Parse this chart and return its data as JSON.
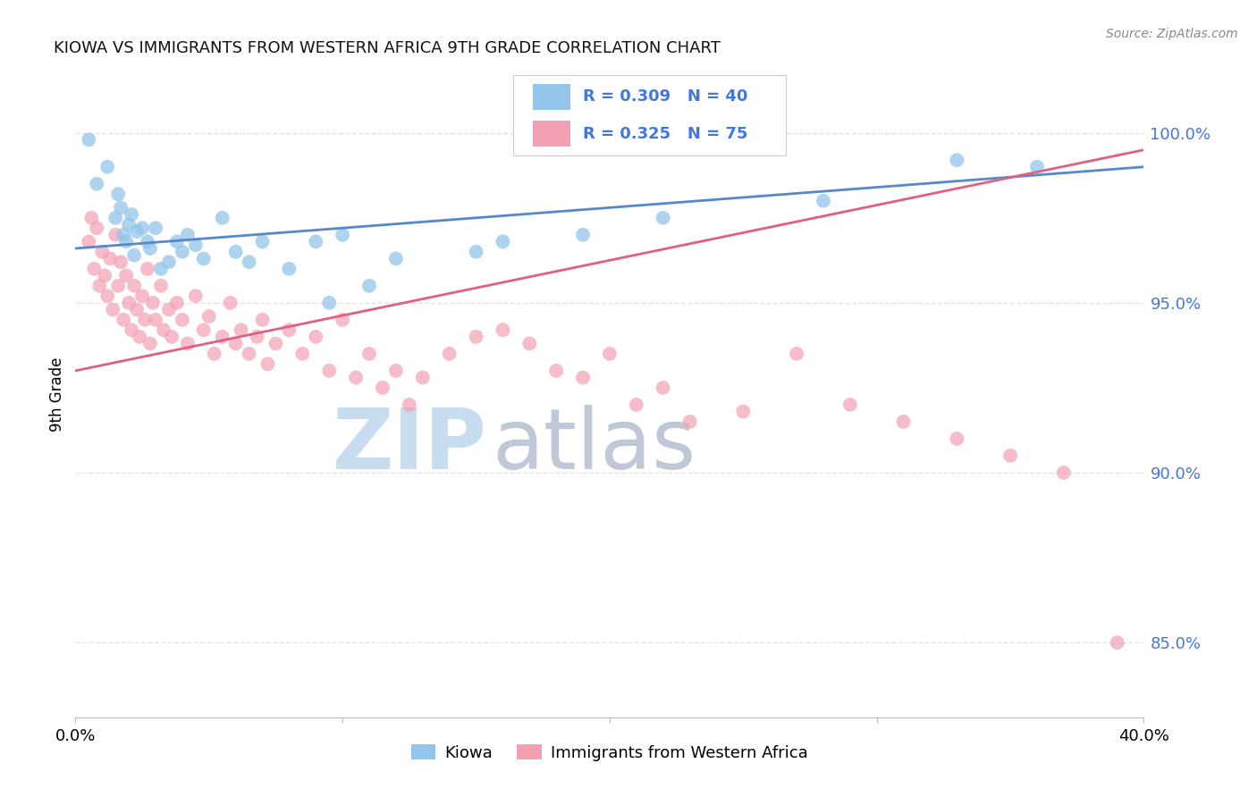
{
  "title": "KIOWA VS IMMIGRANTS FROM WESTERN AFRICA 9TH GRADE CORRELATION CHART",
  "source": "Source: ZipAtlas.com",
  "ylabel": "9th Grade",
  "right_yticks": [
    "100.0%",
    "95.0%",
    "90.0%",
    "85.0%"
  ],
  "right_ytick_vals": [
    1.0,
    0.95,
    0.9,
    0.85
  ],
  "xlim": [
    0.0,
    0.4
  ],
  "ylim": [
    0.828,
    1.018
  ],
  "legend_blue_r": "0.309",
  "legend_blue_n": "40",
  "legend_pink_r": "0.325",
  "legend_pink_n": "75",
  "blue_color": "#92C5EA",
  "pink_color": "#F4A0B4",
  "line_blue_color": "#5588CC",
  "line_pink_color": "#E06080",
  "legend_text_color": "#4477DD",
  "axis_label_color": "#4477DD",
  "watermark_zip_color": "#C8DCF0",
  "watermark_atlas_color": "#C0C8D8",
  "blue_scatter_x": [
    0.005,
    0.008,
    0.012,
    0.015,
    0.016,
    0.017,
    0.018,
    0.019,
    0.02,
    0.021,
    0.022,
    0.023,
    0.025,
    0.027,
    0.028,
    0.03,
    0.032,
    0.035,
    0.038,
    0.04,
    0.042,
    0.045,
    0.048,
    0.055,
    0.06,
    0.065,
    0.07,
    0.08,
    0.09,
    0.095,
    0.1,
    0.11,
    0.12,
    0.15,
    0.16,
    0.19,
    0.22,
    0.28,
    0.33,
    0.36
  ],
  "blue_scatter_y": [
    0.998,
    0.985,
    0.99,
    0.975,
    0.982,
    0.978,
    0.97,
    0.968,
    0.973,
    0.976,
    0.964,
    0.971,
    0.972,
    0.968,
    0.966,
    0.972,
    0.96,
    0.962,
    0.968,
    0.965,
    0.97,
    0.967,
    0.963,
    0.975,
    0.965,
    0.962,
    0.968,
    0.96,
    0.968,
    0.95,
    0.97,
    0.955,
    0.963,
    0.965,
    0.968,
    0.97,
    0.975,
    0.98,
    0.992,
    0.99
  ],
  "pink_scatter_x": [
    0.005,
    0.006,
    0.007,
    0.008,
    0.009,
    0.01,
    0.011,
    0.012,
    0.013,
    0.014,
    0.015,
    0.016,
    0.017,
    0.018,
    0.019,
    0.02,
    0.021,
    0.022,
    0.023,
    0.024,
    0.025,
    0.026,
    0.027,
    0.028,
    0.029,
    0.03,
    0.032,
    0.033,
    0.035,
    0.036,
    0.038,
    0.04,
    0.042,
    0.045,
    0.048,
    0.05,
    0.052,
    0.055,
    0.058,
    0.06,
    0.062,
    0.065,
    0.068,
    0.07,
    0.072,
    0.075,
    0.08,
    0.085,
    0.09,
    0.095,
    0.1,
    0.105,
    0.11,
    0.115,
    0.12,
    0.125,
    0.13,
    0.14,
    0.15,
    0.16,
    0.17,
    0.18,
    0.19,
    0.2,
    0.21,
    0.22,
    0.23,
    0.25,
    0.27,
    0.29,
    0.31,
    0.33,
    0.35,
    0.37,
    0.39
  ],
  "pink_scatter_y": [
    0.968,
    0.975,
    0.96,
    0.972,
    0.955,
    0.965,
    0.958,
    0.952,
    0.963,
    0.948,
    0.97,
    0.955,
    0.962,
    0.945,
    0.958,
    0.95,
    0.942,
    0.955,
    0.948,
    0.94,
    0.952,
    0.945,
    0.96,
    0.938,
    0.95,
    0.945,
    0.955,
    0.942,
    0.948,
    0.94,
    0.95,
    0.945,
    0.938,
    0.952,
    0.942,
    0.946,
    0.935,
    0.94,
    0.95,
    0.938,
    0.942,
    0.935,
    0.94,
    0.945,
    0.932,
    0.938,
    0.942,
    0.935,
    0.94,
    0.93,
    0.945,
    0.928,
    0.935,
    0.925,
    0.93,
    0.92,
    0.928,
    0.935,
    0.94,
    0.942,
    0.938,
    0.93,
    0.928,
    0.935,
    0.92,
    0.925,
    0.915,
    0.918,
    0.935,
    0.92,
    0.915,
    0.91,
    0.905,
    0.9,
    0.85
  ],
  "blue_trendline_x": [
    0.0,
    0.4
  ],
  "blue_trendline_y": [
    0.966,
    0.99
  ],
  "pink_trendline_x": [
    0.0,
    0.4
  ],
  "pink_trendline_y": [
    0.93,
    0.995
  ],
  "background_color": "#FFFFFF",
  "grid_color": "#DDDDDD",
  "title_color": "#111111",
  "source_color": "#888888"
}
